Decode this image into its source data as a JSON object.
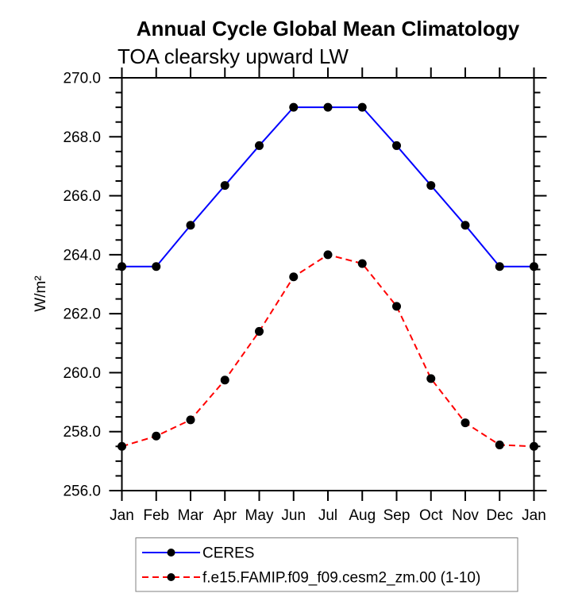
{
  "page": {
    "background": "#ffffff"
  },
  "chart_data": {
    "type": "line",
    "title": "Annual Cycle Global Mean Climatology",
    "subtitle": "TOA clearsky upward LW",
    "ylabel": "W/m²",
    "xlabel": "",
    "categories": [
      "Jan",
      "Feb",
      "Mar",
      "Apr",
      "May",
      "Jun",
      "Jul",
      "Aug",
      "Sep",
      "Oct",
      "Nov",
      "Dec",
      "Jan"
    ],
    "ylim": [
      256.0,
      270.0
    ],
    "ytick_step": 2.0,
    "yminor_step": 0.5,
    "ytick_labels": [
      "256.0",
      "258.0",
      "260.0",
      "262.0",
      "264.0",
      "266.0",
      "268.0",
      "270.0"
    ],
    "grid": false,
    "legend_position": "bottom",
    "axis_color": "#000000",
    "marker_color": "#000000",
    "series": [
      {
        "name": "CERES",
        "color": "#0000ff",
        "style": "solid",
        "marker": "filled-circle",
        "values": [
          263.6,
          263.6,
          265.0,
          266.35,
          267.7,
          269.0,
          269.0,
          269.0,
          267.7,
          266.35,
          265.0,
          263.6,
          263.6
        ]
      },
      {
        "name": "f.e15.FAMIP.f09_f09.cesm2_zm.00 (1-10)",
        "color": "#ff0000",
        "style": "dashed",
        "marker": "filled-circle",
        "values": [
          257.5,
          257.85,
          258.4,
          259.75,
          261.4,
          263.25,
          264.0,
          263.7,
          262.25,
          259.8,
          258.3,
          257.55,
          257.5
        ]
      }
    ]
  }
}
